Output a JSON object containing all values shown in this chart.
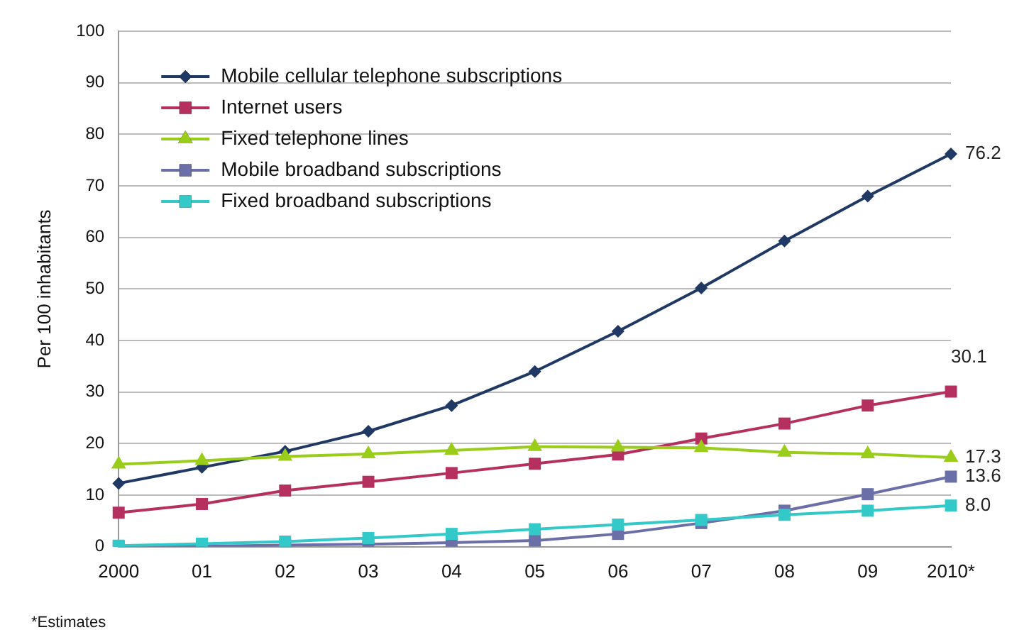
{
  "chart_data": {
    "type": "line",
    "ylabel": "Per 100 inhabitants",
    "categories": [
      "2000",
      "01",
      "02",
      "03",
      "04",
      "05",
      "06",
      "07",
      "08",
      "09",
      "2010*"
    ],
    "series": [
      {
        "name": "Mobile cellular telephone subscriptions",
        "color": "#1f3864",
        "marker": "diamond",
        "values": [
          12.3,
          15.4,
          18.5,
          22.4,
          27.4,
          34.0,
          41.8,
          50.2,
          59.3,
          68.0,
          76.2
        ],
        "value_labels": [
          null,
          null,
          null,
          null,
          null,
          null,
          null,
          null,
          null,
          null,
          "76.2"
        ]
      },
      {
        "name": "Internet users",
        "color": "#b5305f",
        "marker": "square",
        "values": [
          6.6,
          8.3,
          10.9,
          12.6,
          14.3,
          16.1,
          17.9,
          21.0,
          23.9,
          27.4,
          30.1
        ],
        "value_labels": [
          null,
          null,
          null,
          null,
          null,
          null,
          null,
          null,
          null,
          null,
          "30.1"
        ]
      },
      {
        "name": "Fixed telephone lines",
        "color": "#9acd1a",
        "marker": "triangle",
        "values": [
          16.0,
          16.7,
          17.5,
          18.0,
          18.7,
          19.4,
          19.3,
          19.2,
          18.3,
          18.0,
          17.3
        ],
        "value_labels": [
          null,
          null,
          null,
          null,
          null,
          null,
          null,
          null,
          null,
          null,
          "17.3"
        ]
      },
      {
        "name": "Mobile broadband subscriptions",
        "color": "#6a6fa8",
        "marker": "square",
        "values": [
          0.0,
          0.1,
          0.3,
          0.5,
          0.8,
          1.2,
          2.5,
          4.6,
          7.0,
          10.2,
          13.6
        ],
        "value_labels": [
          null,
          null,
          null,
          null,
          null,
          null,
          null,
          null,
          null,
          null,
          "13.6"
        ]
      },
      {
        "name": "Fixed broadband subscriptions",
        "color": "#33c9c9",
        "marker": "square",
        "values": [
          0.2,
          0.6,
          1.0,
          1.7,
          2.5,
          3.4,
          4.3,
          5.2,
          6.2,
          7.0,
          8.0
        ],
        "value_labels": [
          null,
          null,
          null,
          null,
          null,
          null,
          null,
          null,
          null,
          null,
          "8.0"
        ]
      }
    ],
    "ylim": [
      0,
      100
    ],
    "yticks": [
      0,
      10,
      20,
      30,
      40,
      50,
      60,
      70,
      80,
      90,
      100
    ],
    "grid": "y",
    "legend": "top left",
    "line_style": "solid",
    "annotations": [
      "*Estimates"
    ]
  }
}
